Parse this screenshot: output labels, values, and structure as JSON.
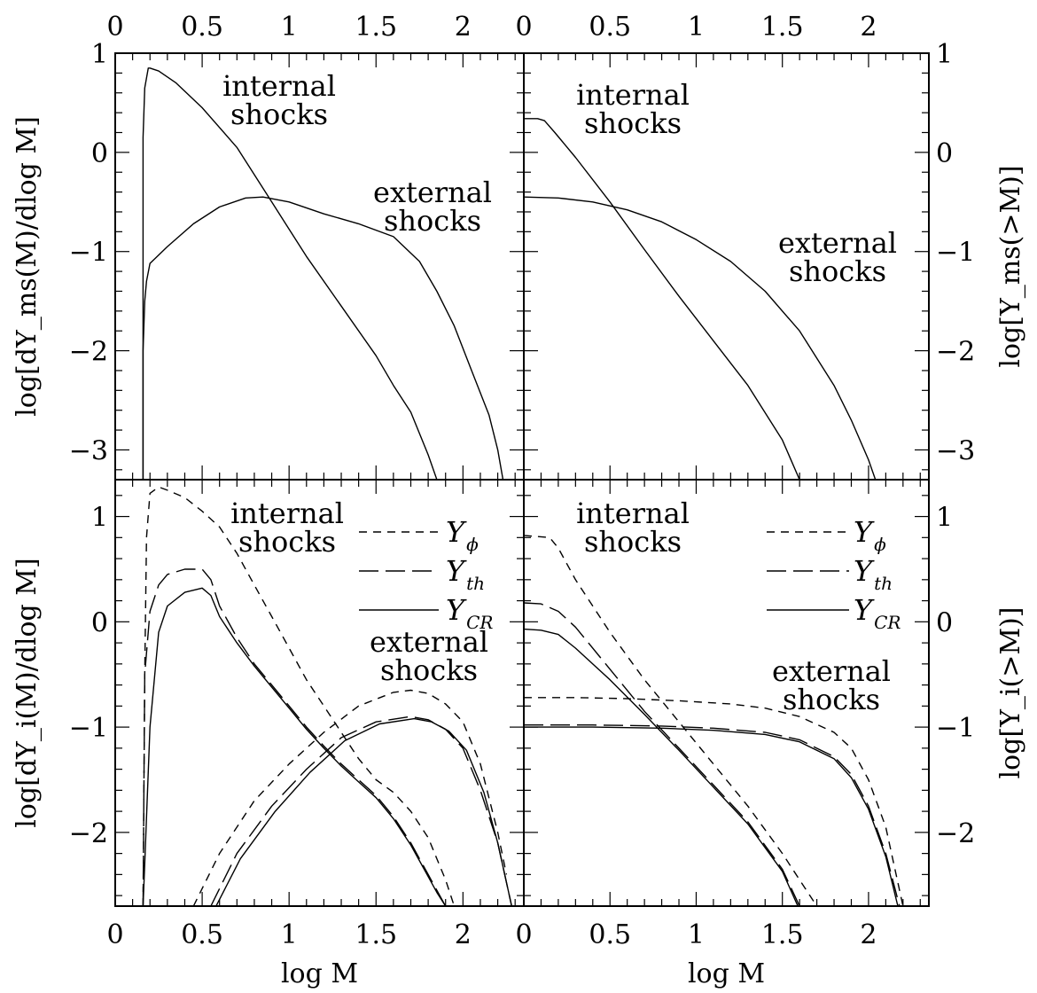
{
  "chart_data": [
    {
      "panel": "top-left",
      "type": "line",
      "ylabel": "log[dY_ms(M)/dlog M]",
      "xlim": [
        0,
        2.35
      ],
      "ylim": [
        -3.3,
        1
      ],
      "x_ticks_top": [
        "0",
        "0.5",
        "1",
        "1.5",
        "2"
      ],
      "y_ticks": [
        "1",
        "0",
        "−1",
        "−2",
        "−3"
      ],
      "annotations": [
        {
          "lines": [
            "internal",
            "shocks"
          ]
        },
        {
          "lines": [
            "external",
            "shocks"
          ]
        }
      ],
      "series": [
        {
          "style": "solid",
          "x": [
            0.16,
            0.16,
            0.17,
            0.19,
            0.2,
            0.25,
            0.35,
            0.5,
            0.7,
            0.9,
            1.1,
            1.3,
            1.5,
            1.6,
            1.7,
            1.8,
            1.85
          ],
          "y": [
            -3.3,
            0.15,
            0.65,
            0.85,
            0.85,
            0.82,
            0.7,
            0.45,
            0.05,
            -0.5,
            -1.05,
            -1.55,
            -2.05,
            -2.35,
            -2.62,
            -3.05,
            -3.3
          ]
        },
        {
          "style": "solid",
          "x": [
            0.16,
            0.16,
            0.17,
            0.18,
            0.2,
            0.3,
            0.45,
            0.6,
            0.75,
            0.85,
            1.0,
            1.2,
            1.4,
            1.6,
            1.75,
            1.85,
            1.95,
            2.05,
            2.15,
            2.2,
            2.23
          ],
          "y": [
            -3.3,
            -2.0,
            -1.5,
            -1.3,
            -1.12,
            -0.95,
            -0.72,
            -0.55,
            -0.46,
            -0.45,
            -0.5,
            -0.62,
            -0.72,
            -0.85,
            -1.1,
            -1.4,
            -1.75,
            -2.2,
            -2.65,
            -3.0,
            -3.3
          ]
        }
      ]
    },
    {
      "panel": "top-right",
      "type": "line",
      "ylabel": "log[Y_ms(>M)]",
      "xlim": [
        0,
        2.35
      ],
      "ylim": [
        -3.3,
        1
      ],
      "x_ticks_top": [
        "0",
        "0.5",
        "1",
        "1.5",
        "2"
      ],
      "y_ticks": [
        "1",
        "0",
        "−1",
        "−2",
        "−3"
      ],
      "annotations": [
        {
          "lines": [
            "internal",
            "shocks"
          ]
        },
        {
          "lines": [
            "external",
            "shocks"
          ]
        }
      ],
      "series": [
        {
          "style": "solid",
          "x": [
            0.0,
            0.08,
            0.12,
            0.18,
            0.3,
            0.5,
            0.7,
            0.9,
            1.1,
            1.3,
            1.5,
            1.6
          ],
          "y": [
            0.34,
            0.34,
            0.32,
            0.2,
            -0.05,
            -0.5,
            -0.98,
            -1.45,
            -1.9,
            -2.35,
            -2.9,
            -3.3
          ]
        },
        {
          "style": "solid",
          "x": [
            0.0,
            0.2,
            0.4,
            0.6,
            0.8,
            1.0,
            1.2,
            1.4,
            1.6,
            1.8,
            1.9,
            2.0,
            2.04
          ],
          "y": [
            -0.45,
            -0.46,
            -0.5,
            -0.58,
            -0.7,
            -0.88,
            -1.1,
            -1.4,
            -1.8,
            -2.35,
            -2.7,
            -3.1,
            -3.3
          ]
        }
      ]
    },
    {
      "panel": "bottom-left",
      "type": "line",
      "xlabel": "log M",
      "ylabel": "log[dY_i(M)/dlog M]",
      "xlim": [
        0,
        2.35
      ],
      "ylim": [
        -2.7,
        1.35
      ],
      "x_ticks_bottom": [
        "0",
        "0.5",
        "1",
        "1.5",
        "2"
      ],
      "y_ticks": [
        "1",
        "0",
        "−1",
        "−2"
      ],
      "annotations": [
        {
          "lines": [
            "internal",
            "shocks"
          ]
        },
        {
          "lines": [
            "external",
            "shocks"
          ]
        }
      ],
      "legend": {
        "position": "top-right",
        "entries": [
          {
            "base": "Y",
            "sub": "ϕ",
            "style": "short-dash"
          },
          {
            "base": "Y",
            "sub": "th",
            "style": "long-dash"
          },
          {
            "base": "Y",
            "sub": "CR",
            "style": "solid"
          }
        ]
      },
      "series": [
        {
          "label": "Y_ϕ internal",
          "style": "short-dash",
          "x": [
            0.16,
            0.17,
            0.18,
            0.2,
            0.25,
            0.3,
            0.4,
            0.5,
            0.6,
            0.7,
            0.8,
            0.9,
            1.0,
            1.1,
            1.2,
            1.3,
            1.4,
            1.5,
            1.6,
            1.7,
            1.8,
            1.85,
            1.9,
            1.95
          ],
          "y": [
            -2.7,
            -0.5,
            0.8,
            1.22,
            1.28,
            1.25,
            1.18,
            1.05,
            0.9,
            0.65,
            0.35,
            0.05,
            -0.25,
            -0.55,
            -0.8,
            -1.05,
            -1.3,
            -1.5,
            -1.62,
            -1.8,
            -2.05,
            -2.25,
            -2.45,
            -2.7
          ]
        },
        {
          "label": "Y_th internal",
          "style": "long-dash",
          "x": [
            0.16,
            0.17,
            0.2,
            0.25,
            0.3,
            0.4,
            0.5,
            0.55,
            0.6,
            0.7,
            0.8,
            0.9,
            1.0,
            1.1,
            1.2,
            1.3,
            1.4,
            1.5,
            1.6,
            1.7,
            1.75,
            1.8,
            1.85,
            1.9
          ],
          "y": [
            -2.7,
            -0.5,
            0.1,
            0.35,
            0.45,
            0.5,
            0.5,
            0.4,
            0.15,
            -0.15,
            -0.4,
            -0.6,
            -0.8,
            -1.0,
            -1.18,
            -1.35,
            -1.5,
            -1.65,
            -1.85,
            -2.1,
            -2.25,
            -2.4,
            -2.55,
            -2.7
          ]
        },
        {
          "label": "Y_CR internal",
          "style": "solid",
          "x": [
            0.16,
            0.17,
            0.2,
            0.25,
            0.3,
            0.4,
            0.5,
            0.55,
            0.6,
            0.7,
            0.8,
            0.9,
            1.0,
            1.1,
            1.2,
            1.3,
            1.4,
            1.5,
            1.6,
            1.7,
            1.75,
            1.8,
            1.85,
            1.9
          ],
          "y": [
            -2.7,
            -2.3,
            -1.0,
            -0.1,
            0.15,
            0.28,
            0.32,
            0.25,
            0.05,
            -0.2,
            -0.42,
            -0.62,
            -0.82,
            -1.02,
            -1.2,
            -1.37,
            -1.52,
            -1.67,
            -1.87,
            -2.12,
            -2.27,
            -2.42,
            -2.57,
            -2.7
          ]
        },
        {
          "label": "Y_ϕ external",
          "style": "short-dash",
          "x": [
            0.45,
            0.6,
            0.8,
            1.0,
            1.2,
            1.4,
            1.6,
            1.7,
            1.8,
            1.9,
            2.0,
            2.1,
            2.2,
            2.25
          ],
          "y": [
            -2.7,
            -2.2,
            -1.7,
            -1.35,
            -1.05,
            -0.8,
            -0.67,
            -0.65,
            -0.68,
            -0.78,
            -0.95,
            -1.35,
            -2.0,
            -2.4
          ]
        },
        {
          "label": "Y_th external",
          "style": "long-dash",
          "x": [
            0.55,
            0.7,
            0.9,
            1.1,
            1.3,
            1.5,
            1.7,
            1.8,
            1.9,
            2.0,
            2.1,
            2.2,
            2.28
          ],
          "y": [
            -2.7,
            -2.2,
            -1.75,
            -1.4,
            -1.1,
            -0.95,
            -0.9,
            -0.93,
            -1.02,
            -1.2,
            -1.6,
            -2.1,
            -2.7
          ]
        },
        {
          "label": "Y_CR external",
          "style": "solid",
          "x": [
            0.58,
            0.72,
            0.92,
            1.12,
            1.32,
            1.52,
            1.72,
            1.82,
            1.92,
            2.02,
            2.12,
            2.2,
            2.28
          ],
          "y": [
            -2.7,
            -2.25,
            -1.8,
            -1.43,
            -1.13,
            -0.97,
            -0.92,
            -0.95,
            -1.04,
            -1.22,
            -1.62,
            -2.1,
            -2.7
          ]
        }
      ]
    },
    {
      "panel": "bottom-right",
      "type": "line",
      "xlabel": "log M",
      "ylabel": "log[Y_i(>M)]",
      "xlim": [
        0,
        2.35
      ],
      "ylim": [
        -2.7,
        1.35
      ],
      "x_ticks_bottom": [
        "0",
        "0.5",
        "1",
        "1.5",
        "2"
      ],
      "y_ticks": [
        "1",
        "0",
        "−1",
        "−2"
      ],
      "annotations": [
        {
          "lines": [
            "internal",
            "shocks"
          ]
        },
        {
          "lines": [
            "external",
            "shocks"
          ]
        }
      ],
      "legend": {
        "position": "top-right",
        "entries": [
          {
            "base": "Y",
            "sub": "ϕ",
            "style": "short-dash"
          },
          {
            "base": "Y",
            "sub": "th",
            "style": "long-dash"
          },
          {
            "base": "Y",
            "sub": "CR",
            "style": "solid"
          }
        ]
      },
      "series": [
        {
          "label": "Y_ϕ internal",
          "style": "short-dash",
          "x": [
            0.0,
            0.15,
            0.2,
            0.3,
            0.5,
            0.7,
            0.9,
            1.1,
            1.3,
            1.5,
            1.6,
            1.7
          ],
          "y": [
            0.82,
            0.8,
            0.7,
            0.4,
            -0.1,
            -0.55,
            -0.95,
            -1.35,
            -1.75,
            -2.2,
            -2.45,
            -2.7
          ]
        },
        {
          "label": "Y_th internal",
          "style": "long-dash",
          "x": [
            0.0,
            0.1,
            0.2,
            0.3,
            0.5,
            0.7,
            0.9,
            1.1,
            1.3,
            1.5,
            1.6
          ],
          "y": [
            0.18,
            0.17,
            0.1,
            -0.05,
            -0.45,
            -0.85,
            -1.2,
            -1.55,
            -1.9,
            -2.35,
            -2.7
          ]
        },
        {
          "label": "Y_CR internal",
          "style": "solid",
          "x": [
            0.0,
            0.1,
            0.2,
            0.3,
            0.5,
            0.7,
            0.9,
            1.1,
            1.3,
            1.5,
            1.59
          ],
          "y": [
            -0.07,
            -0.08,
            -0.12,
            -0.25,
            -0.55,
            -0.88,
            -1.22,
            -1.57,
            -1.92,
            -2.37,
            -2.7
          ]
        },
        {
          "label": "Y_ϕ external",
          "style": "short-dash",
          "x": [
            0.0,
            0.3,
            0.6,
            0.9,
            1.2,
            1.4,
            1.6,
            1.8,
            1.9,
            2.0,
            2.1,
            2.2
          ],
          "y": [
            -0.72,
            -0.72,
            -0.73,
            -0.75,
            -0.78,
            -0.82,
            -0.9,
            -1.05,
            -1.2,
            -1.5,
            -1.95,
            -2.7
          ]
        },
        {
          "label": "Y_th external",
          "style": "long-dash",
          "x": [
            0.0,
            0.4,
            0.8,
            1.1,
            1.4,
            1.6,
            1.8,
            1.9,
            2.0,
            2.1,
            2.18
          ],
          "y": [
            -0.98,
            -0.98,
            -0.99,
            -1.01,
            -1.05,
            -1.12,
            -1.28,
            -1.45,
            -1.75,
            -2.2,
            -2.7
          ]
        },
        {
          "label": "Y_CR external",
          "style": "solid",
          "x": [
            0.0,
            0.4,
            0.8,
            1.1,
            1.4,
            1.6,
            1.8,
            1.9,
            2.0,
            2.1,
            2.17
          ],
          "y": [
            -1.0,
            -1.0,
            -1.01,
            -1.03,
            -1.07,
            -1.14,
            -1.3,
            -1.48,
            -1.78,
            -2.23,
            -2.7
          ]
        }
      ]
    }
  ]
}
